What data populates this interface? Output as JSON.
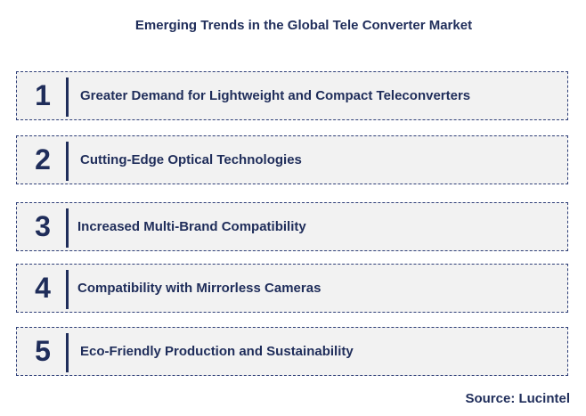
{
  "title": "Emerging Trends in the Global Tele Converter Market",
  "trends": [
    {
      "number": "1",
      "label": "Greater Demand for Lightweight and Compact Teleconverters"
    },
    {
      "number": "2",
      "label": "Cutting-Edge Optical  Technologies"
    },
    {
      "number": "3",
      "label": "Increased Multi-Brand Compatibility"
    },
    {
      "number": "4",
      "label": "Compatibility  with Mirrorless  Cameras"
    },
    {
      "number": "5",
      "label": "Eco-Friendly Production and Sustainability"
    }
  ],
  "source": "Source: Lucintel",
  "colors": {
    "text": "#1f2d5a",
    "box_background": "#f2f2f2",
    "box_border": "#2f3f78"
  }
}
